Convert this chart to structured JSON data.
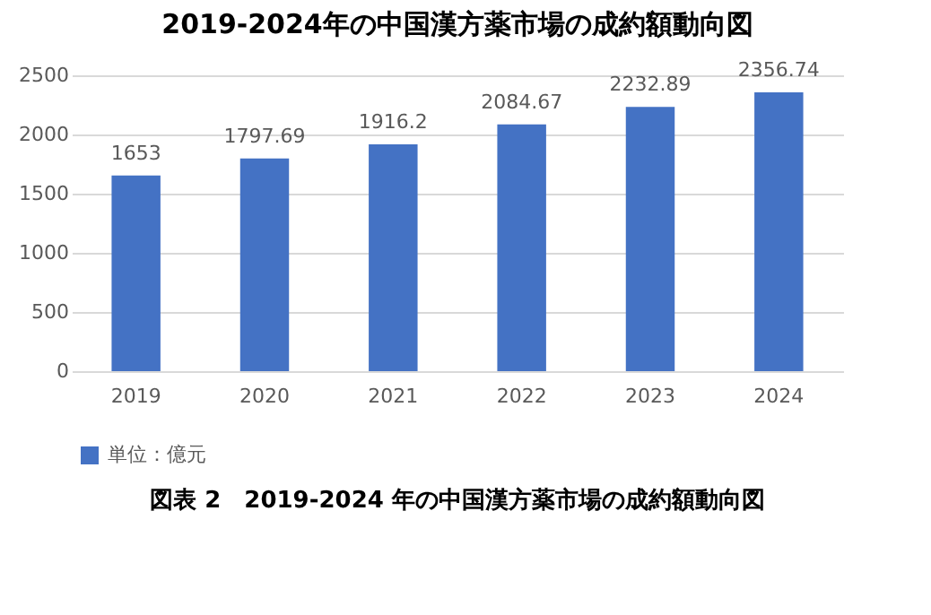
{
  "chart_data": {
    "type": "bar",
    "title": "2019-2024年の中国漢方薬市場の成約額動向図",
    "categories": [
      "2019",
      "2020",
      "2021",
      "2022",
      "2023",
      "2024"
    ],
    "series": [
      {
        "name": "単位：億元",
        "color": "#4472c4",
        "values": [
          1653,
          1797.69,
          1916.2,
          2084.67,
          2232.89,
          2356.74
        ]
      }
    ],
    "ylim": [
      0,
      2500
    ],
    "yticks": [
      0,
      500,
      1000,
      1500,
      2000,
      2500
    ],
    "grid": "y",
    "data_labels": true,
    "legend": "bottom",
    "annotations": [
      "図表 2　2019-2024 年の中国漢方薬市場の成約額動向図"
    ]
  }
}
